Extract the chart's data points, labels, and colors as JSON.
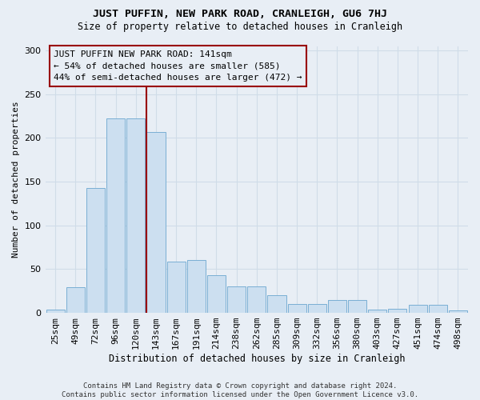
{
  "title": "JUST PUFFIN, NEW PARK ROAD, CRANLEIGH, GU6 7HJ",
  "subtitle": "Size of property relative to detached houses in Cranleigh",
  "xlabel": "Distribution of detached houses by size in Cranleigh",
  "ylabel": "Number of detached properties",
  "bar_color": "#ccdff0",
  "bar_edge_color": "#7aafd4",
  "vline_color": "#990000",
  "annotation_box_edge": "#990000",
  "bg_color": "#e8eef5",
  "grid_color": "#d0dce8",
  "annotation_text": "JUST PUFFIN NEW PARK ROAD: 141sqm\n← 54% of detached houses are smaller (585)\n44% of semi-detached houses are larger (472) →",
  "categories": [
    "25sqm",
    "49sqm",
    "72sqm",
    "96sqm",
    "120sqm",
    "143sqm",
    "167sqm",
    "191sqm",
    "214sqm",
    "238sqm",
    "262sqm",
    "285sqm",
    "309sqm",
    "332sqm",
    "356sqm",
    "380sqm",
    "403sqm",
    "427sqm",
    "451sqm",
    "474sqm",
    "498sqm"
  ],
  "values": [
    4,
    29,
    143,
    222,
    222,
    207,
    59,
    60,
    43,
    30,
    30,
    20,
    10,
    10,
    15,
    15,
    4,
    5,
    9,
    9,
    3
  ],
  "ylim": [
    0,
    305
  ],
  "yticks": [
    0,
    50,
    100,
    150,
    200,
    250,
    300
  ],
  "vline_bar_index": 5,
  "footnote": "Contains HM Land Registry data © Crown copyright and database right 2024.\nContains public sector information licensed under the Open Government Licence v3.0."
}
